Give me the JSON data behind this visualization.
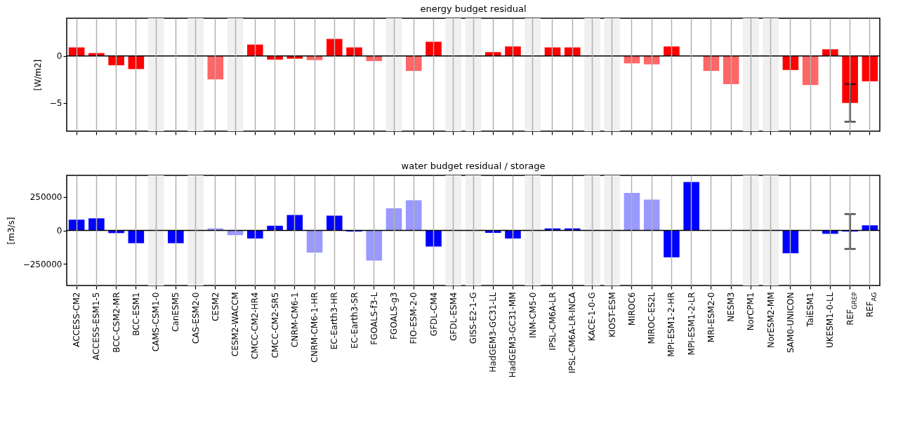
{
  "chart_data": [
    {
      "type": "bar",
      "title": "energy budget residual",
      "ylabel": "[W/m2]",
      "tick_labels": "y",
      "grid": "x",
      "categories": [
        "ACCESS-CM2",
        "ACCESS-ESM1-5",
        "BCC-CSM2-MR",
        "BCC-ESM1",
        "CAMS-CSM1-0",
        "CanESM5",
        "CAS-ESM2-0",
        "CESM2",
        "CESM2-WACCM",
        "CMCC-CM2-HR4",
        "CMCC-CM2-SR5",
        "CNRM-CM6-1",
        "CNRM-CM6-1-HR",
        "EC-Earth3-HR",
        "EC-Earth3-SR",
        "FGOALS-f3-L",
        "FGOALS-g3",
        "FIO-ESM-2-0",
        "GFDL-CM4",
        "GFDL-ESM4",
        "GISS-E2-1-G",
        "HadGEM3-GC31-LL",
        "HadGEM3-GC31-MM",
        "INM-CM5-0",
        "IPSL-CM6A-LR",
        "IPSL-CM6A-LR-INCA",
        "KACE-1-0-G",
        "KIOST-ESM",
        "MIROC6",
        "MIROC-ES2L",
        "MPI-ESM1-2-HR",
        "MPI-ESM1-2-LR",
        "MRI-ESM2-0",
        "NESM3",
        "NorCPM1",
        "NorESM2-MM",
        "SAM0-UNICON",
        "TaiESM1",
        "UKESM1-0-LL",
        "REF$_{GREP}$",
        "REF$_{AG}$"
      ],
      "values": [
        0.9,
        0.3,
        -1.0,
        -1.4,
        null,
        null,
        null,
        -2.5,
        null,
        1.2,
        -0.4,
        -0.3,
        -0.45,
        1.8,
        0.9,
        -0.55,
        null,
        -1.6,
        1.5,
        null,
        null,
        0.4,
        1.0,
        null,
        0.9,
        0.9,
        null,
        null,
        -0.8,
        -0.9,
        1.0,
        null,
        -1.6,
        -3.0,
        null,
        null,
        -1.5,
        -3.1,
        0.7,
        -5.0,
        -2.7
      ],
      "colors": [
        "#ff0000",
        "#ff0000",
        "#ff0000",
        "#ff0000",
        null,
        null,
        null,
        "#ff6666",
        null,
        "#ff0000",
        "#ff0000",
        "#ff0000",
        "#ff6666",
        "#ff0000",
        "#ff0000",
        "#ff6666",
        null,
        "#ff6666",
        "#ff0000",
        null,
        null,
        "#ff0000",
        "#ff0000",
        null,
        "#ff0000",
        "#ff0000",
        null,
        null,
        "#ff6666",
        "#ff6666",
        "#ff0000",
        null,
        "#ff6666",
        "#ff6666",
        null,
        null,
        "#ff0000",
        "#ff6666",
        "#ff0000",
        "#ff0000",
        "#ff0000"
      ],
      "errors": [
        null,
        null,
        null,
        null,
        null,
        null,
        null,
        null,
        null,
        null,
        null,
        null,
        null,
        null,
        null,
        null,
        null,
        null,
        null,
        null,
        null,
        null,
        null,
        null,
        null,
        null,
        null,
        null,
        null,
        null,
        null,
        null,
        null,
        null,
        null,
        null,
        null,
        null,
        null,
        2,
        null
      ],
      "ylim": [
        -8,
        4
      ],
      "yticks": [
        -5,
        0
      ],
      "ref_lines": [
        {
          "axis": "y",
          "value": 0,
          "color": "#000000"
        }
      ],
      "bands": [
        {
          "axis": "x",
          "from": "CAMS-CSM1-0",
          "to": "CAMS-CSM1-0",
          "color": "#f0f0f0"
        },
        {
          "axis": "x",
          "from": "CAS-ESM2-0",
          "to": "CAS-ESM2-0",
          "color": "#f0f0f0"
        },
        {
          "axis": "x",
          "from": "CESM2-WACCM",
          "to": "CESM2-WACCM",
          "color": "#f0f0f0"
        },
        {
          "axis": "x",
          "from": "FGOALS-g3",
          "to": "FGOALS-g3",
          "color": "#f0f0f0"
        },
        {
          "axis": "x",
          "from": "GFDL-ESM4",
          "to": "GFDL-ESM4",
          "color": "#f0f0f0"
        },
        {
          "axis": "x",
          "from": "GISS-E2-1-G",
          "to": "GISS-E2-1-G",
          "color": "#f0f0f0"
        },
        {
          "axis": "x",
          "from": "INM-CM5-0",
          "to": "INM-CM5-0",
          "color": "#f0f0f0"
        },
        {
          "axis": "x",
          "from": "KACE-1-0-G",
          "to": "KACE-1-0-G",
          "color": "#f0f0f0"
        },
        {
          "axis": "x",
          "from": "KIOST-ESM",
          "to": "KIOST-ESM",
          "color": "#f0f0f0"
        },
        {
          "axis": "x",
          "from": "NorCPM1",
          "to": "NorCPM1",
          "color": "#f0f0f0"
        },
        {
          "axis": "x",
          "from": "NorESM2-MM",
          "to": "NorESM2-MM",
          "color": "#f0f0f0"
        }
      ]
    },
    {
      "type": "bar",
      "title": "water budget residual / storage",
      "ylabel": "[m3/s]",
      "grid": "x",
      "categories": [
        "ACCESS-CM2",
        "ACCESS-ESM1-5",
        "BCC-CSM2-MR",
        "BCC-ESM1",
        "CAMS-CSM1-0",
        "CanESM5",
        "CAS-ESM2-0",
        "CESM2",
        "CESM2-WACCM",
        "CMCC-CM2-HR4",
        "CMCC-CM2-SR5",
        "CNRM-CM6-1",
        "CNRM-CM6-1-HR",
        "EC-Earth3-HR",
        "EC-Earth3-SR",
        "FGOALS-f3-L",
        "FGOALS-g3",
        "FIO-ESM-2-0",
        "GFDL-CM4",
        "GFDL-ESM4",
        "GISS-E2-1-G",
        "HadGEM3-GC31-LL",
        "HadGEM3-GC31-MM",
        "INM-CM5-0",
        "IPSL-CM6A-LR",
        "IPSL-CM6A-LR-INCA",
        "KACE-1-0-G",
        "KIOST-ESM",
        "MIROC6",
        "MIROC-ES2L",
        "MPI-ESM1-2-HR",
        "MPI-ESM1-2-LR",
        "MRI-ESM2-0",
        "NESM3",
        "NorCPM1",
        "NorESM2-MM",
        "SAM0-UNICON",
        "TaiESM1",
        "UKESM1-0-LL",
        "REF$_{GREP}$",
        "REF$_{AG}$"
      ],
      "values": [
        80000,
        90000,
        -20000,
        -95000,
        null,
        -95000,
        null,
        15000,
        -35000,
        -60000,
        35000,
        115000,
        -165000,
        110000,
        -8000,
        -225000,
        165000,
        225000,
        -120000,
        null,
        null,
        -18000,
        -60000,
        null,
        15000,
        15000,
        null,
        null,
        280000,
        230000,
        -200000,
        360000,
        null,
        null,
        null,
        null,
        -170000,
        null,
        -25000,
        -8000,
        38000
      ],
      "colors": [
        "#0000ff",
        "#0000ff",
        "#0000ff",
        "#0000ff",
        null,
        "#0000ff",
        null,
        "#9999ff",
        "#9999ff",
        "#0000ff",
        "#0000ff",
        "#0000ff",
        "#9999ff",
        "#0000ff",
        "#0000ff",
        "#9999ff",
        "#9999ff",
        "#9999ff",
        "#0000ff",
        null,
        null,
        "#0000ff",
        "#0000ff",
        null,
        "#0000ff",
        "#0000ff",
        null,
        null,
        "#9999ff",
        "#9999ff",
        "#0000ff",
        "#0000ff",
        null,
        null,
        null,
        null,
        "#0000ff",
        null,
        "#0000ff",
        "#0000ff",
        "#0000ff"
      ],
      "errors": [
        null,
        null,
        null,
        null,
        null,
        null,
        null,
        null,
        null,
        null,
        null,
        null,
        null,
        null,
        null,
        null,
        null,
        null,
        null,
        null,
        null,
        null,
        null,
        null,
        null,
        null,
        null,
        null,
        null,
        null,
        null,
        null,
        null,
        null,
        null,
        null,
        null,
        null,
        null,
        130000,
        null
      ],
      "ylim": [
        -410000,
        410000
      ],
      "yticks": [
        -250000,
        0,
        250000
      ],
      "ref_lines": [
        {
          "axis": "y",
          "value": 0,
          "color": "#000000"
        }
      ],
      "bands": [
        {
          "axis": "x",
          "from": "CAMS-CSM1-0",
          "to": "CAMS-CSM1-0",
          "color": "#f0f0f0"
        },
        {
          "axis": "x",
          "from": "CAS-ESM2-0",
          "to": "CAS-ESM2-0",
          "color": "#f0f0f0"
        },
        {
          "axis": "x",
          "from": "GFDL-ESM4",
          "to": "GFDL-ESM4",
          "color": "#f0f0f0"
        },
        {
          "axis": "x",
          "from": "GISS-E2-1-G",
          "to": "GISS-E2-1-G",
          "color": "#f0f0f0"
        },
        {
          "axis": "x",
          "from": "INM-CM5-0",
          "to": "INM-CM5-0",
          "color": "#f0f0f0"
        },
        {
          "axis": "x",
          "from": "KACE-1-0-G",
          "to": "KACE-1-0-G",
          "color": "#f0f0f0"
        },
        {
          "axis": "x",
          "from": "KIOST-ESM",
          "to": "KIOST-ESM",
          "color": "#f0f0f0"
        },
        {
          "axis": "x",
          "from": "NorCPM1",
          "to": "NorCPM1",
          "color": "#f0f0f0"
        },
        {
          "axis": "x",
          "from": "NorESM2-MM",
          "to": "NorESM2-MM",
          "color": "#f0f0f0"
        }
      ]
    }
  ]
}
